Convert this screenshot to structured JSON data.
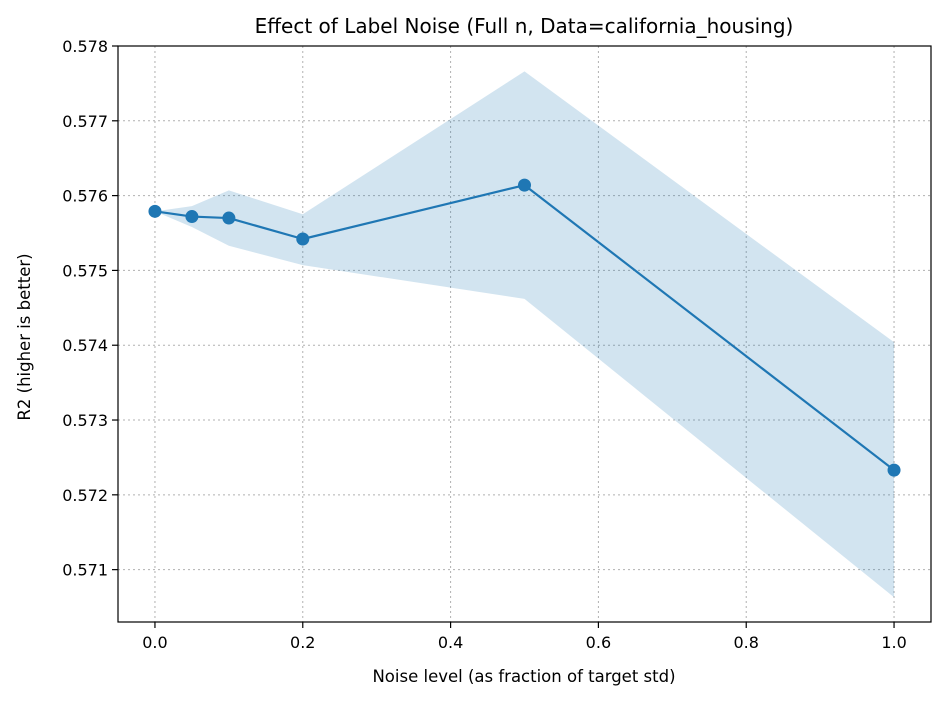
{
  "chart_data": {
    "type": "line",
    "title": "Effect of Label Noise (Full n, Data=california_housing)",
    "xlabel": "Noise level (as fraction of target std)",
    "ylabel": "R2 (higher is better)",
    "xlim": [
      -0.05,
      1.05
    ],
    "ylim": [
      0.5703,
      0.578
    ],
    "xticks": [
      "0.0",
      "0.2",
      "0.4",
      "0.6",
      "0.8",
      "1.0"
    ],
    "yticks": [
      "0.571",
      "0.572",
      "0.573",
      "0.574",
      "0.575",
      "0.576",
      "0.577",
      "0.578"
    ],
    "grid": true,
    "series": [
      {
        "x": [
          0.0,
          0.05,
          0.1,
          0.2,
          0.5,
          1.0
        ],
        "y": [
          0.57579,
          0.57572,
          0.5757,
          0.57542,
          0.57614,
          0.57233
        ],
        "band_upper": [
          0.57579,
          0.57586,
          0.57607,
          0.57575,
          0.57766,
          0.57404
        ],
        "band_lower": [
          0.57579,
          0.57558,
          0.57533,
          0.57507,
          0.57462,
          0.57063
        ]
      }
    ],
    "colors": {
      "line": "#1f77b4",
      "band": "#1f77b4",
      "grid": "#b0b0b0",
      "axes": "#000000"
    }
  }
}
